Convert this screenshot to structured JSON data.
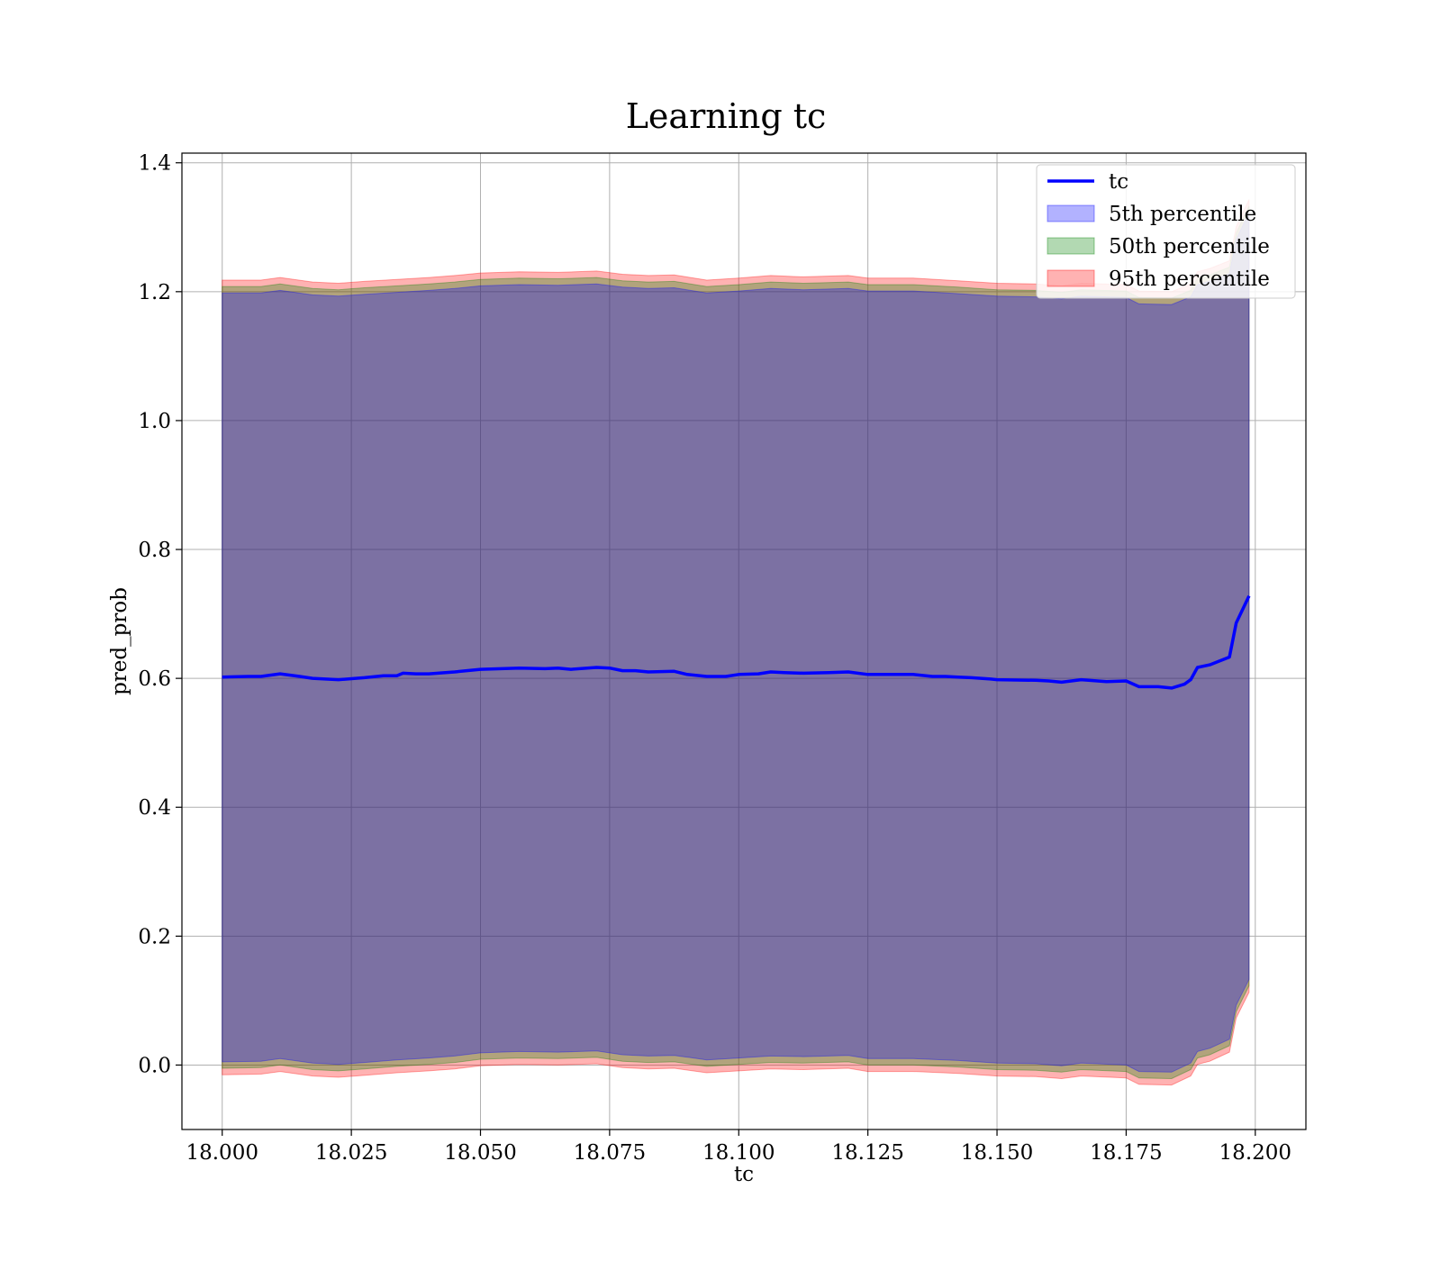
{
  "chart_data": {
    "type": "line",
    "title": "Learning tc",
    "xlabel": "tc",
    "ylabel": "pred_prob",
    "xlim": [
      17.9922,
      18.2098
    ],
    "ylim": [
      -0.1,
      1.415
    ],
    "xticks": [
      "18.000",
      "18.025",
      "18.050",
      "18.075",
      "18.100",
      "18.125",
      "18.150",
      "18.175",
      "18.200"
    ],
    "yticks": [
      "0.0",
      "0.2",
      "0.4",
      "0.6",
      "0.8",
      "1.0",
      "1.2",
      "1.4"
    ],
    "grid": true,
    "legend_position": "top-right",
    "line": {
      "name": "tc",
      "color": "#0000ff",
      "points": [
        [
          18.0,
          0.602
        ],
        [
          18.005,
          0.603
        ],
        [
          18.0075,
          0.603
        ],
        [
          18.0112,
          0.607
        ],
        [
          18.015,
          0.603
        ],
        [
          18.0175,
          0.6
        ],
        [
          18.0225,
          0.598
        ],
        [
          18.0275,
          0.601
        ],
        [
          18.0312,
          0.604
        ],
        [
          18.0338,
          0.604
        ],
        [
          18.035,
          0.608
        ],
        [
          18.0375,
          0.607
        ],
        [
          18.04,
          0.607
        ],
        [
          18.045,
          0.61
        ],
        [
          18.05,
          0.614
        ],
        [
          18.0575,
          0.616
        ],
        [
          18.0625,
          0.615
        ],
        [
          18.065,
          0.616
        ],
        [
          18.0675,
          0.614
        ],
        [
          18.0725,
          0.617
        ],
        [
          18.075,
          0.616
        ],
        [
          18.0775,
          0.612
        ],
        [
          18.08,
          0.612
        ],
        [
          18.0825,
          0.61
        ],
        [
          18.0875,
          0.611
        ],
        [
          18.09,
          0.606
        ],
        [
          18.0938,
          0.603
        ],
        [
          18.0975,
          0.603
        ],
        [
          18.1,
          0.606
        ],
        [
          18.1038,
          0.607
        ],
        [
          18.1062,
          0.61
        ],
        [
          18.1088,
          0.609
        ],
        [
          18.1125,
          0.608
        ],
        [
          18.1175,
          0.609
        ],
        [
          18.1212,
          0.61
        ],
        [
          18.125,
          0.606
        ],
        [
          18.13,
          0.606
        ],
        [
          18.1338,
          0.606
        ],
        [
          18.1375,
          0.603
        ],
        [
          18.14,
          0.603
        ],
        [
          18.1425,
          0.602
        ],
        [
          18.145,
          0.601
        ],
        [
          18.1488,
          0.599
        ],
        [
          18.15,
          0.598
        ],
        [
          18.1575,
          0.597
        ],
        [
          18.16,
          0.596
        ],
        [
          18.1625,
          0.594
        ],
        [
          18.1663,
          0.598
        ],
        [
          18.1712,
          0.595
        ],
        [
          18.175,
          0.596
        ],
        [
          18.1775,
          0.587
        ],
        [
          18.1812,
          0.587
        ],
        [
          18.1838,
          0.585
        ],
        [
          18.1863,
          0.591
        ],
        [
          18.1875,
          0.598
        ],
        [
          18.1888,
          0.617
        ],
        [
          18.1912,
          0.621
        ],
        [
          18.195,
          0.633
        ],
        [
          18.1963,
          0.686
        ],
        [
          18.1988,
          0.728
        ]
      ]
    },
    "bands": [
      {
        "name": "95th percentile",
        "color": "#ff0000",
        "opacity": 0.3,
        "points": [
          [
            18.0,
            1.218,
            -0.015
          ],
          [
            18.0075,
            1.218,
            -0.014
          ],
          [
            18.0112,
            1.222,
            -0.01
          ],
          [
            18.0175,
            1.215,
            -0.017
          ],
          [
            18.0225,
            1.213,
            -0.019
          ],
          [
            18.0275,
            1.216,
            -0.016
          ],
          [
            18.0338,
            1.219,
            -0.012
          ],
          [
            18.04,
            1.222,
            -0.009
          ],
          [
            18.045,
            1.225,
            -0.006
          ],
          [
            18.05,
            1.229,
            -0.001
          ],
          [
            18.0575,
            1.231,
            0.001
          ],
          [
            18.065,
            1.23,
            0.0
          ],
          [
            18.0725,
            1.232,
            0.002
          ],
          [
            18.0775,
            1.227,
            -0.004
          ],
          [
            18.0825,
            1.225,
            -0.006
          ],
          [
            18.0875,
            1.226,
            -0.005
          ],
          [
            18.0938,
            1.218,
            -0.012
          ],
          [
            18.1,
            1.221,
            -0.009
          ],
          [
            18.1062,
            1.225,
            -0.006
          ],
          [
            18.1125,
            1.223,
            -0.007
          ],
          [
            18.1212,
            1.225,
            -0.005
          ],
          [
            18.125,
            1.221,
            -0.01
          ],
          [
            18.1338,
            1.221,
            -0.01
          ],
          [
            18.1425,
            1.217,
            -0.013
          ],
          [
            18.15,
            1.213,
            -0.017
          ],
          [
            18.1575,
            1.212,
            -0.018
          ],
          [
            18.1625,
            1.209,
            -0.021
          ],
          [
            18.1663,
            1.213,
            -0.017
          ],
          [
            18.175,
            1.211,
            -0.02
          ],
          [
            18.1775,
            1.201,
            -0.03
          ],
          [
            18.1838,
            1.2,
            -0.031
          ],
          [
            18.1875,
            1.212,
            -0.017
          ],
          [
            18.1888,
            1.231,
            0.001
          ],
          [
            18.1912,
            1.236,
            0.006
          ],
          [
            18.195,
            1.248,
            0.02
          ],
          [
            18.1963,
            1.301,
            0.073
          ],
          [
            18.1988,
            1.343,
            0.113
          ]
        ]
      },
      {
        "name": "50th percentile",
        "color": "#008000",
        "opacity": 0.3,
        "points": [
          [
            18.0,
            1.208,
            -0.005
          ],
          [
            18.0075,
            1.208,
            -0.004
          ],
          [
            18.0112,
            1.212,
            0.0
          ],
          [
            18.0175,
            1.205,
            -0.007
          ],
          [
            18.0225,
            1.203,
            -0.009
          ],
          [
            18.0275,
            1.206,
            -0.006
          ],
          [
            18.0338,
            1.209,
            -0.002
          ],
          [
            18.04,
            1.212,
            0.001
          ],
          [
            18.045,
            1.215,
            0.004
          ],
          [
            18.05,
            1.219,
            0.009
          ],
          [
            18.0575,
            1.221,
            0.011
          ],
          [
            18.065,
            1.22,
            0.01
          ],
          [
            18.0725,
            1.222,
            0.012
          ],
          [
            18.0775,
            1.217,
            0.006
          ],
          [
            18.0825,
            1.215,
            0.004
          ],
          [
            18.0875,
            1.216,
            0.005
          ],
          [
            18.0938,
            1.208,
            -0.002
          ],
          [
            18.1,
            1.211,
            0.001
          ],
          [
            18.1062,
            1.215,
            0.004
          ],
          [
            18.1125,
            1.213,
            0.003
          ],
          [
            18.1212,
            1.215,
            0.005
          ],
          [
            18.125,
            1.211,
            0.0
          ],
          [
            18.1338,
            1.211,
            0.0
          ],
          [
            18.1425,
            1.207,
            -0.003
          ],
          [
            18.15,
            1.203,
            -0.007
          ],
          [
            18.1575,
            1.202,
            -0.008
          ],
          [
            18.1625,
            1.199,
            -0.011
          ],
          [
            18.1663,
            1.203,
            -0.007
          ],
          [
            18.175,
            1.201,
            -0.01
          ],
          [
            18.1775,
            1.191,
            -0.02
          ],
          [
            18.1838,
            1.19,
            -0.021
          ],
          [
            18.1875,
            1.202,
            -0.007
          ],
          [
            18.1888,
            1.221,
            0.011
          ],
          [
            18.1912,
            1.226,
            0.016
          ],
          [
            18.195,
            1.238,
            0.03
          ],
          [
            18.1963,
            1.291,
            0.083
          ],
          [
            18.1988,
            1.333,
            0.123
          ]
        ]
      },
      {
        "name": "5th percentile",
        "color": "#0000ff",
        "opacity": 0.3,
        "points": [
          [
            18.0,
            1.198,
            0.005
          ],
          [
            18.0075,
            1.198,
            0.006
          ],
          [
            18.0112,
            1.202,
            0.01
          ],
          [
            18.0175,
            1.195,
            0.003
          ],
          [
            18.0225,
            1.193,
            0.001
          ],
          [
            18.0275,
            1.196,
            0.004
          ],
          [
            18.0338,
            1.199,
            0.008
          ],
          [
            18.04,
            1.202,
            0.011
          ],
          [
            18.045,
            1.205,
            0.014
          ],
          [
            18.05,
            1.209,
            0.019
          ],
          [
            18.0575,
            1.211,
            0.021
          ],
          [
            18.065,
            1.21,
            0.02
          ],
          [
            18.0725,
            1.212,
            0.022
          ],
          [
            18.0775,
            1.207,
            0.016
          ],
          [
            18.0825,
            1.205,
            0.014
          ],
          [
            18.0875,
            1.206,
            0.015
          ],
          [
            18.0938,
            1.198,
            0.008
          ],
          [
            18.1,
            1.201,
            0.011
          ],
          [
            18.1062,
            1.205,
            0.014
          ],
          [
            18.1125,
            1.203,
            0.013
          ],
          [
            18.1212,
            1.205,
            0.015
          ],
          [
            18.125,
            1.201,
            0.01
          ],
          [
            18.1338,
            1.201,
            0.01
          ],
          [
            18.1425,
            1.197,
            0.007
          ],
          [
            18.15,
            1.193,
            0.003
          ],
          [
            18.1575,
            1.192,
            0.002
          ],
          [
            18.1625,
            1.189,
            -0.001
          ],
          [
            18.1663,
            1.193,
            0.003
          ],
          [
            18.175,
            1.191,
            0.0
          ],
          [
            18.1775,
            1.181,
            -0.01
          ],
          [
            18.1838,
            1.18,
            -0.011
          ],
          [
            18.1875,
            1.192,
            0.003
          ],
          [
            18.1888,
            1.211,
            0.021
          ],
          [
            18.1912,
            1.216,
            0.026
          ],
          [
            18.195,
            1.228,
            0.04
          ],
          [
            18.1963,
            1.281,
            0.093
          ],
          [
            18.1988,
            1.323,
            0.133
          ]
        ]
      }
    ],
    "legend": [
      {
        "label": "tc",
        "kind": "line",
        "color": "#0000ff"
      },
      {
        "label": "5th percentile",
        "kind": "patch",
        "color": "#0000ff"
      },
      {
        "label": "50th percentile",
        "kind": "patch",
        "color": "#008000"
      },
      {
        "label": "95th percentile",
        "kind": "patch",
        "color": "#ff0000"
      }
    ]
  }
}
